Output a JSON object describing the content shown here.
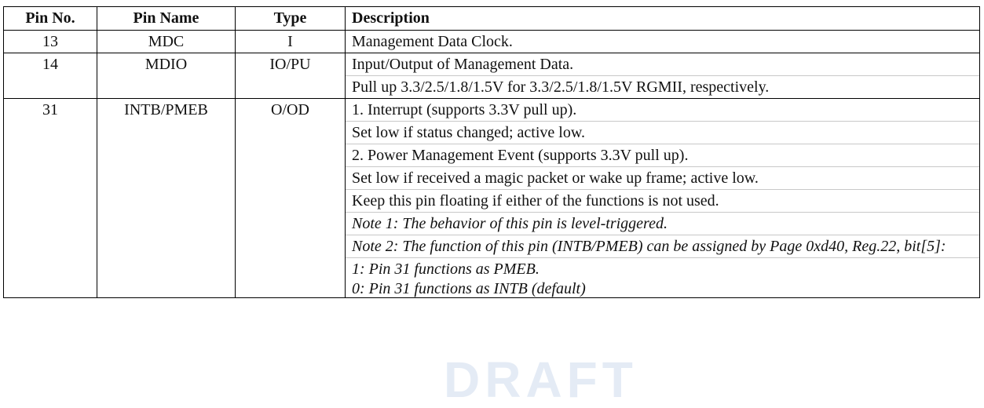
{
  "table": {
    "headers": [
      "Pin No.",
      "Pin Name",
      "Type",
      "Description"
    ],
    "rows": [
      {
        "pin_no": "13",
        "pin_name": "MDC",
        "type": "I",
        "description": [
          {
            "text": "Management Data Clock.",
            "italic": false
          }
        ]
      },
      {
        "pin_no": "14",
        "pin_name": "MDIO",
        "type": "IO/PU",
        "description": [
          {
            "text": "Input/Output of Management Data.",
            "italic": false
          },
          {
            "text": "Pull up 3.3/2.5/1.8/1.5V for 3.3/2.5/1.8/1.5V RGMII, respectively.",
            "italic": false
          }
        ]
      },
      {
        "pin_no": "31",
        "pin_name": "INTB/PMEB",
        "type": "O/OD",
        "description": [
          {
            "text": "1. Interrupt (supports 3.3V pull up).",
            "italic": false
          },
          {
            "text": "Set low if status changed; active low.",
            "italic": false
          },
          {
            "text": "2. Power Management Event (supports 3.3V pull up).",
            "italic": false
          },
          {
            "text": "Set low if received a magic packet or wake up frame; active low.",
            "italic": false
          },
          {
            "text": "Keep this pin floating if either of the functions is not used.",
            "italic": false
          },
          {
            "text": "Note 1: The behavior of this pin is level-triggered.",
            "italic": true
          },
          {
            "text": "Note 2: The function of this pin (INTB/PMEB) can be assigned by Page 0xd40, Reg.22, bit[5]:",
            "italic": true
          },
          {
            "text": "1: Pin 31 functions as PMEB.",
            "italic": true
          },
          {
            "text": "0: Pin 31 functions as INTB (default)",
            "italic": true
          }
        ]
      }
    ]
  },
  "watermark": "DRAFT"
}
